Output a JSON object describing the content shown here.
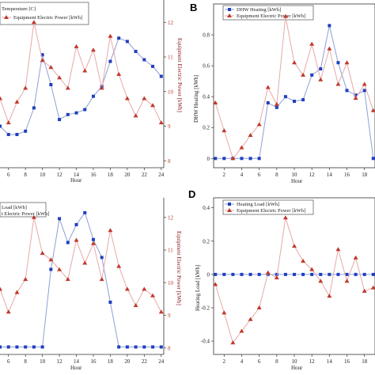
{
  "colors": {
    "blue": "#1f3fbf",
    "blue_line": "#8f9fd6",
    "red": "#c0392b",
    "red_line": "#e8a8a8",
    "right_axis": "#c0392b"
  },
  "chart_data": [
    {
      "id": "A",
      "type": "line",
      "legend": [
        "Temperature [C]",
        "Equipment Electric Power [kWh]"
      ],
      "xlabel": "Hour",
      "ylabel_right": "Equipment Electric Power [kWh]",
      "xticks": [
        6,
        8,
        10,
        12,
        14,
        16,
        18,
        20,
        22,
        24
      ],
      "xlim": [
        5,
        24.3
      ],
      "yticks_right": [
        8,
        9,
        10,
        11,
        12
      ],
      "ylim_right": [
        7.8,
        12.6
      ],
      "ylim_left": [
        -1,
        9
      ],
      "series": [
        {
          "axis": "left",
          "marker": "square",
          "x": [
            5,
            6,
            7,
            8,
            9,
            10,
            11,
            12,
            13,
            14,
            15,
            16,
            17,
            18,
            19,
            20,
            21,
            22,
            23,
            24
          ],
          "y": [
            1.5,
            1.0,
            1.0,
            1.2,
            2.6,
            5.8,
            4.0,
            1.9,
            2.2,
            2.3,
            2.5,
            3.3,
            3.9,
            5.4,
            6.8,
            6.6,
            6.0,
            5.5,
            5.1,
            4.5
          ]
        },
        {
          "axis": "right",
          "marker": "triangle",
          "x": [
            5,
            6,
            7,
            8,
            9,
            10,
            11,
            12,
            13,
            14,
            15,
            16,
            17,
            18,
            19,
            20,
            21,
            22,
            23,
            24
          ],
          "y": [
            9.8,
            9.1,
            9.7,
            10.1,
            12.0,
            10.9,
            10.7,
            10.4,
            10.1,
            11.3,
            10.6,
            11.2,
            10.1,
            11.6,
            10.5,
            9.8,
            9.3,
            9.8,
            9.6,
            9.1
          ]
        }
      ]
    },
    {
      "id": "B",
      "type": "line",
      "legend": [
        "DHW Heating [kWh]",
        "Equipment Electric Power [kWh]"
      ],
      "xlabel": "Hour",
      "ylabel": "DHW Heating [kWh]",
      "xticks": [
        2,
        4,
        6,
        8,
        10,
        12,
        14,
        16,
        18
      ],
      "xlim": [
        0.8,
        19.2
      ],
      "yticks": [
        0.0,
        0.2,
        0.4,
        0.6,
        0.8
      ],
      "ylim": [
        -0.06,
        1.0
      ],
      "series": [
        {
          "axis": "left",
          "marker": "square",
          "x": [
            1,
            2,
            3,
            4,
            5,
            6,
            7,
            8,
            9,
            10,
            11,
            12,
            13,
            14,
            15,
            16,
            17,
            18,
            19
          ],
          "y": [
            0,
            0,
            0,
            0,
            0,
            0,
            0.36,
            0.33,
            0.4,
            0.37,
            0.38,
            0.54,
            0.58,
            0.86,
            0.62,
            0.44,
            0.41,
            0.44,
            0
          ]
        },
        {
          "axis": "right",
          "marker": "triangle",
          "x": [
            1,
            2,
            3,
            4,
            5,
            6,
            7,
            8,
            9,
            10,
            11,
            12,
            13,
            14,
            15,
            16,
            17,
            18,
            19
          ],
          "y": [
            0.36,
            0.18,
            0.0,
            0.07,
            0.15,
            0.22,
            0.46,
            0.35,
            0.92,
            0.62,
            0.54,
            0.74,
            0.51,
            0.71,
            0.48,
            0.62,
            0.39,
            0.48,
            0.31
          ]
        }
      ]
    },
    {
      "id": "C",
      "type": "line",
      "legend": [
        "Load [kWh]",
        "t Electric Power [kWh]"
      ],
      "xlabel": "Hour",
      "ylabel_right": "Equipment Electric Power [kWh]",
      "xticks": [
        6,
        8,
        10,
        12,
        14,
        16,
        18,
        20,
        22,
        24
      ],
      "xlim": [
        5,
        24.3
      ],
      "yticks_right": [
        8,
        9,
        10,
        11,
        12
      ],
      "ylim_right": [
        7.8,
        12.6
      ],
      "ylim_left": [
        -0.05,
        1.0
      ],
      "series": [
        {
          "axis": "left",
          "marker": "square",
          "x": [
            5,
            6,
            7,
            8,
            9,
            10,
            11,
            12,
            13,
            14,
            15,
            16,
            17,
            18,
            19,
            20,
            21,
            22,
            23,
            24
          ],
          "y": [
            0,
            0,
            0,
            0,
            0,
            0,
            0.52,
            0.86,
            0.7,
            0.82,
            0.9,
            0.72,
            0.6,
            0.3,
            0,
            0,
            0,
            0,
            0,
            0
          ]
        },
        {
          "axis": "right",
          "marker": "triangle",
          "x": [
            5,
            6,
            7,
            8,
            9,
            10,
            11,
            12,
            13,
            14,
            15,
            16,
            17,
            18,
            19,
            20,
            21,
            22,
            23,
            24
          ],
          "y": [
            9.8,
            9.1,
            9.7,
            10.1,
            12.0,
            10.9,
            10.7,
            10.4,
            10.1,
            11.3,
            10.6,
            11.2,
            10.1,
            11.6,
            10.5,
            9.8,
            9.3,
            9.8,
            9.6,
            9.1
          ]
        }
      ]
    },
    {
      "id": "D",
      "type": "line",
      "legend": [
        "Heating Load [kWh]",
        "Equipment Electric Power [kWh]"
      ],
      "xlabel": "Hour",
      "ylabel": "Heating Load [kWh]",
      "xticks": [
        2,
        4,
        6,
        8,
        10,
        12,
        14,
        16,
        18
      ],
      "xlim": [
        0.8,
        19.2
      ],
      "yticks": [
        -0.4,
        -0.2,
        0.0,
        0.2,
        0.4
      ],
      "ylim": [
        -0.48,
        0.46
      ],
      "series": [
        {
          "axis": "left",
          "marker": "square",
          "x": [
            1,
            2,
            3,
            4,
            5,
            6,
            7,
            8,
            9,
            10,
            11,
            12,
            13,
            14,
            15,
            16,
            17,
            18,
            19
          ],
          "y": [
            0,
            0,
            0,
            0,
            0,
            0,
            0,
            0,
            0,
            0,
            0,
            0,
            0,
            0,
            0,
            0,
            0,
            0,
            0
          ]
        },
        {
          "axis": "right",
          "marker": "triangle",
          "x": [
            1,
            2,
            3,
            4,
            5,
            6,
            7,
            8,
            9,
            10,
            11,
            12,
            13,
            14,
            15,
            16,
            17,
            18,
            19
          ],
          "y": [
            -0.06,
            -0.23,
            -0.41,
            -0.34,
            -0.27,
            -0.2,
            0.01,
            -0.02,
            0.34,
            0.17,
            0.08,
            0.03,
            -0.04,
            -0.13,
            0.15,
            -0.04,
            0.1,
            -0.1,
            -0.08
          ]
        }
      ]
    }
  ]
}
